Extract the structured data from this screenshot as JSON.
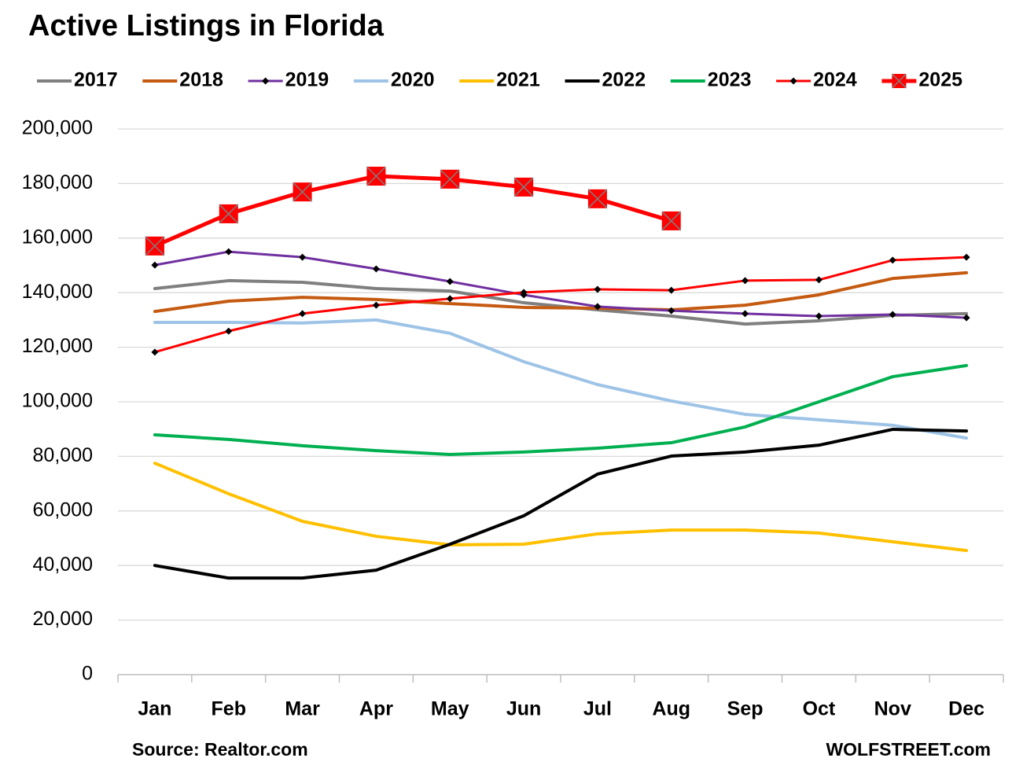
{
  "chart_data": {
    "type": "line",
    "title": "Active Listings in Florida",
    "source": "Source: Realtor.com",
    "credit": "WOLFSTREET.com",
    "categories": [
      "Jan",
      "Feb",
      "Mar",
      "Apr",
      "May",
      "Jun",
      "Jul",
      "Aug",
      "Sep",
      "Oct",
      "Nov",
      "Dec"
    ],
    "ylim": [
      0,
      200000
    ],
    "yticks": [
      0,
      {
        "value": 20000,
        "label": "20,000"
      },
      {
        "value": 40000,
        "label": "40,000"
      },
      {
        "value": 60000,
        "label": "60,000"
      },
      {
        "value": 80000,
        "label": "80,000"
      },
      {
        "value": 100000,
        "label": "100,000"
      },
      {
        "value": 120000,
        "label": "120,000"
      },
      {
        "value": 140000,
        "label": "140,000"
      },
      {
        "value": 160000,
        "label": "160,000"
      },
      {
        "value": 180000,
        "label": "180,000"
      },
      {
        "value": 200000,
        "label": "200,000"
      }
    ],
    "grid": true,
    "legend": "top",
    "series": [
      {
        "name": "2017",
        "color": "#7f7f7f",
        "marker": "none",
        "values": [
          141500,
          144400,
          143800,
          141500,
          140600,
          136300,
          133700,
          131400,
          128500,
          129700,
          131700,
          132300
        ]
      },
      {
        "name": "2018",
        "color": "#c55a11",
        "marker": "none",
        "values": [
          133100,
          136900,
          138300,
          137500,
          136000,
          134600,
          134300,
          133700,
          135400,
          139200,
          145200,
          147300
        ]
      },
      {
        "name": "2019",
        "color": "#7030a0",
        "marker": "diamond",
        "values": [
          150100,
          155000,
          153000,
          148700,
          144100,
          139200,
          134900,
          133400,
          132300,
          131400,
          132000,
          130800
        ]
      },
      {
        "name": "2020",
        "color": "#9dc3e6",
        "marker": "none",
        "values": [
          129100,
          129100,
          128900,
          130000,
          125100,
          114700,
          106300,
          100300,
          95400,
          93400,
          91400,
          86700
        ]
      },
      {
        "name": "2021",
        "color": "#ffc000",
        "marker": "none",
        "values": [
          77500,
          66300,
          56200,
          50700,
          47600,
          47800,
          51600,
          53000,
          53000,
          51900,
          48700,
          45500
        ]
      },
      {
        "name": "2022",
        "color": "#000000",
        "marker": "none",
        "values": [
          40000,
          35400,
          35400,
          38300,
          47800,
          58200,
          73500,
          80100,
          81600,
          84100,
          89900,
          89300
        ]
      },
      {
        "name": "2023",
        "color": "#00b050",
        "marker": "none",
        "values": [
          87900,
          86200,
          83900,
          82100,
          80700,
          81600,
          83000,
          85000,
          90800,
          100000,
          109200,
          113300
        ]
      },
      {
        "name": "2024",
        "color": "#ff0000",
        "marker": "diamond",
        "values": [
          118200,
          125900,
          132300,
          135400,
          137800,
          140100,
          141200,
          140900,
          144400,
          144700,
          151900,
          153000
        ]
      },
      {
        "name": "2025",
        "color": "#ff0000",
        "marker": "square",
        "values": [
          157100,
          168900,
          176900,
          182700,
          181600,
          178700,
          174400,
          166300,
          null,
          null,
          null,
          null
        ]
      }
    ]
  }
}
